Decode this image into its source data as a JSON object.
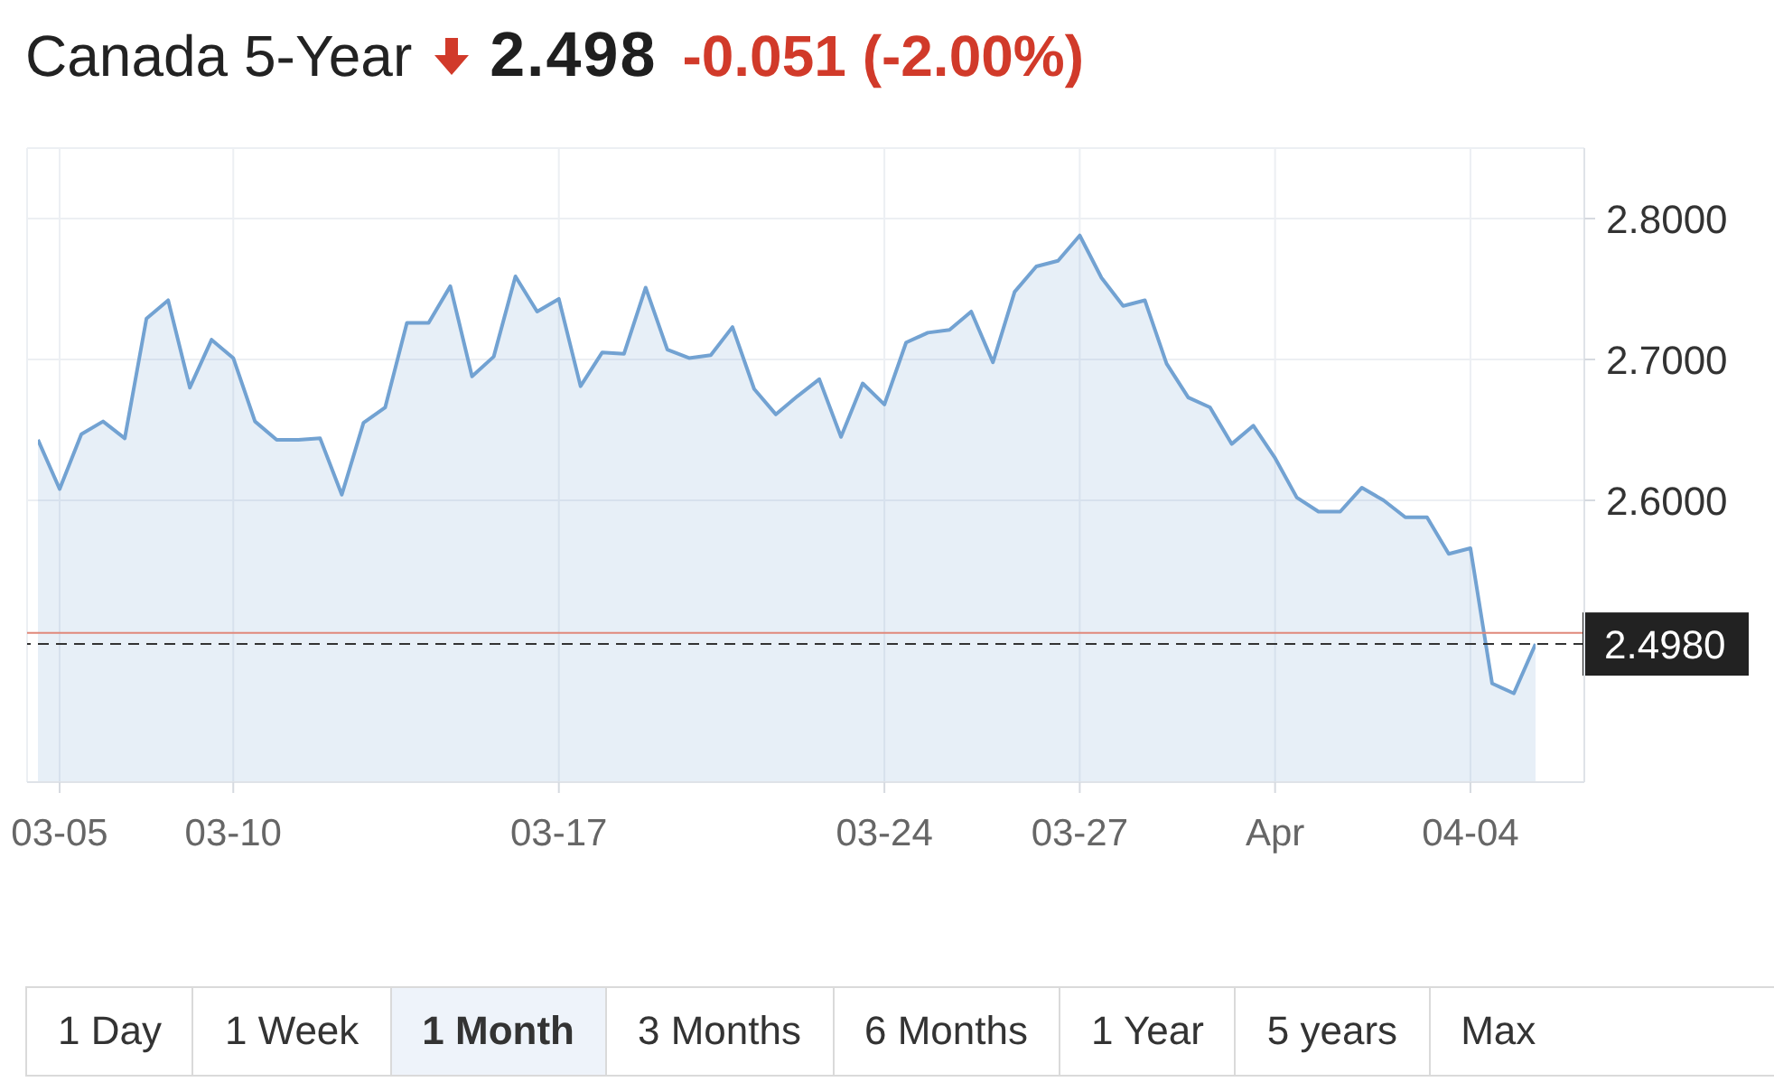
{
  "chart_data": {
    "type": "area",
    "title": "Canada 5-Year",
    "categories": [
      null,
      "03-05",
      null,
      null,
      null,
      null,
      null,
      null,
      null,
      "03-10",
      null,
      null,
      null,
      null,
      null,
      null,
      null,
      null,
      null,
      null,
      null,
      null,
      null,
      null,
      "03-17",
      null,
      null,
      null,
      null,
      null,
      null,
      null,
      null,
      null,
      null,
      null,
      null,
      null,
      null,
      "03-24",
      null,
      null,
      null,
      null,
      null,
      null,
      null,
      null,
      "03-27",
      null,
      null,
      null,
      null,
      null,
      null,
      null,
      null,
      "Apr",
      null,
      null,
      null,
      null,
      null,
      null,
      null,
      null,
      "04-04",
      null,
      null,
      null
    ],
    "series": [
      {
        "color": "#72a2d2",
        "values": [
          2.643,
          2.608,
          2.647,
          2.656,
          2.644,
          2.729,
          2.742,
          2.68,
          2.714,
          2.701,
          2.656,
          2.643,
          2.643,
          2.644,
          2.604,
          2.655,
          2.666,
          2.726,
          2.726,
          2.752,
          2.688,
          2.702,
          2.759,
          2.734,
          2.743,
          2.681,
          2.705,
          2.704,
          2.751,
          2.707,
          2.701,
          2.703,
          2.723,
          2.679,
          2.661,
          2.674,
          2.686,
          2.645,
          2.683,
          2.668,
          2.712,
          2.719,
          2.721,
          2.734,
          2.698,
          2.748,
          2.766,
          2.77,
          2.788,
          2.758,
          2.738,
          2.742,
          2.697,
          2.673,
          2.666,
          2.64,
          2.653,
          2.63,
          2.602,
          2.592,
          2.592,
          2.609,
          2.6,
          2.588,
          2.588,
          2.562,
          2.566,
          2.47,
          2.463,
          2.498
        ]
      }
    ],
    "ylim": [
      2.4,
      2.85
    ],
    "yticks": [
      {
        "value": 2.6,
        "label": "2.6000"
      },
      {
        "value": 2.7,
        "label": "2.7000"
      },
      {
        "value": 2.8,
        "label": "2.8000"
      }
    ],
    "grid": true,
    "ref_lines": [
      {
        "axis": "y",
        "value": 2.506,
        "color": "#e0887a"
      },
      {
        "axis": "y",
        "value": 2.498,
        "label": "2.4980",
        "color": "#333333",
        "line_style": "dashed"
      }
    ],
    "annotations": [
      "2.498",
      "-0.051 (-2.00%)",
      "1 Day",
      "1 Week",
      "1 Month",
      "3 Months",
      "6 Months",
      "1 Year",
      "5 years",
      "Max"
    ]
  }
}
